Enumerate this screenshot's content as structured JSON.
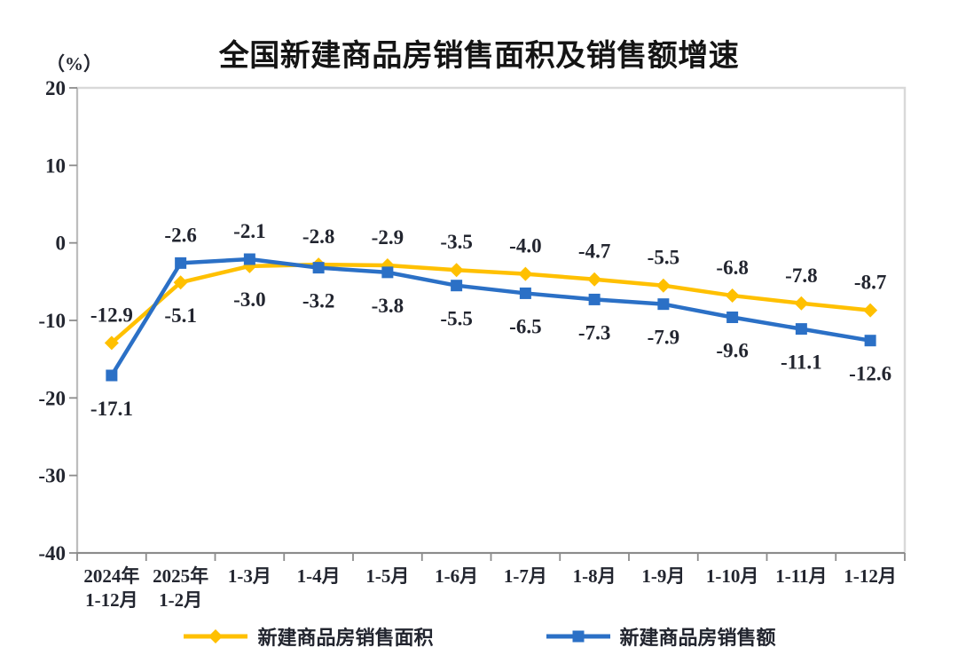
{
  "title": "全国新建商品房销售面积及销售额增速",
  "y_axis_unit": "（%）",
  "colors": {
    "area_series": "#FFC000",
    "sales_series": "#2B70C6",
    "text": "#22252f",
    "plot_border": "#d9d9d9",
    "axis_line": "#8c8c8c",
    "left_axis_line": "#bdbdbd",
    "background": "#ffffff"
  },
  "chart_data": {
    "type": "line",
    "title": "全国新建商品房销售面积及销售额增速",
    "ylabel": "（%）",
    "xlabel": "",
    "ylim": [
      -40,
      20
    ],
    "y_ticks": [
      20,
      10,
      0,
      -10,
      -20,
      -30,
      -40
    ],
    "grid": false,
    "legend_position": "bottom",
    "categories": [
      "2024年\n1-12月",
      "2025年\n1-2月",
      "1-3月",
      "1-4月",
      "1-5月",
      "1-6月",
      "1-7月",
      "1-8月",
      "1-9月",
      "1-10月",
      "1-11月",
      "1-12月"
    ],
    "series": [
      {
        "name": "新建商品房销售面积",
        "marker": "diamond",
        "color": "#FFC000",
        "values": [
          -12.9,
          -5.1,
          -3.0,
          -2.8,
          -2.9,
          -3.5,
          -4.0,
          -4.7,
          -5.5,
          -6.8,
          -7.8,
          -8.7
        ]
      },
      {
        "name": "新建商品房销售额",
        "marker": "square",
        "color": "#2B70C6",
        "values": [
          -17.1,
          -2.6,
          -2.1,
          -3.2,
          -3.8,
          -5.5,
          -6.5,
          -7.3,
          -7.9,
          -9.6,
          -11.1,
          -12.6
        ]
      }
    ]
  }
}
